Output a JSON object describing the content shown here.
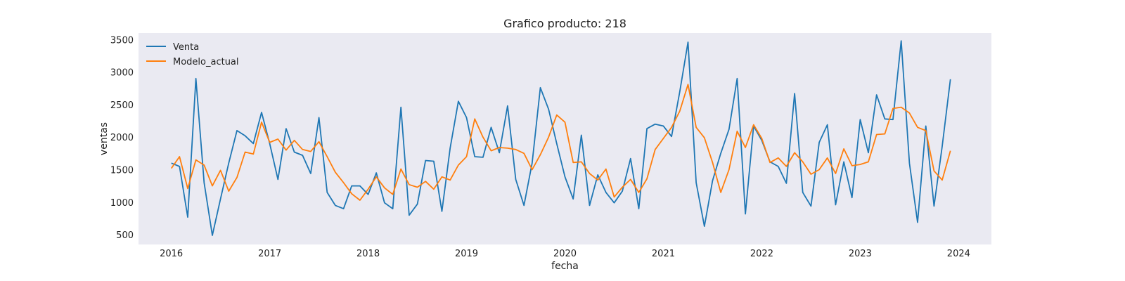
{
  "chart_data": {
    "type": "line",
    "title": "Grafico producto: 218",
    "xlabel": "fecha",
    "ylabel": "ventas",
    "xlim": [
      "2015-09-01",
      "2024-05-01"
    ],
    "ylim": [
      350,
      3600
    ],
    "x_ticks": [
      "2016",
      "2017",
      "2018",
      "2019",
      "2020",
      "2021",
      "2022",
      "2023",
      "2024"
    ],
    "y_ticks": [
      500,
      1000,
      1500,
      2000,
      2500,
      3000,
      3500
    ],
    "grid": false,
    "legend_position": "upper-left",
    "x": [
      "2016-01",
      "2016-02",
      "2016-03",
      "2016-04",
      "2016-05",
      "2016-06",
      "2016-07",
      "2016-08",
      "2016-09",
      "2016-10",
      "2016-11",
      "2016-12",
      "2017-01",
      "2017-02",
      "2017-03",
      "2017-04",
      "2017-05",
      "2017-06",
      "2017-07",
      "2017-08",
      "2017-09",
      "2017-10",
      "2017-11",
      "2017-12",
      "2018-01",
      "2018-02",
      "2018-03",
      "2018-04",
      "2018-05",
      "2018-06",
      "2018-07",
      "2018-08",
      "2018-09",
      "2018-10",
      "2018-11",
      "2018-12",
      "2019-01",
      "2019-02",
      "2019-03",
      "2019-04",
      "2019-05",
      "2019-06",
      "2019-07",
      "2019-08",
      "2019-09",
      "2019-10",
      "2019-11",
      "2019-12",
      "2020-01",
      "2020-02",
      "2020-03",
      "2020-04",
      "2020-05",
      "2020-06",
      "2020-07",
      "2020-08",
      "2020-09",
      "2020-10",
      "2020-11",
      "2020-12",
      "2021-01",
      "2021-02",
      "2021-03",
      "2021-04",
      "2021-05",
      "2021-06",
      "2021-07",
      "2021-08",
      "2021-09",
      "2021-10",
      "2021-11",
      "2021-12",
      "2022-01",
      "2022-02",
      "2022-03",
      "2022-04",
      "2022-05",
      "2022-06",
      "2022-07",
      "2022-08",
      "2022-09",
      "2022-10",
      "2022-11",
      "2022-12",
      "2023-01",
      "2023-02",
      "2023-03",
      "2023-04",
      "2023-05",
      "2023-06",
      "2023-07",
      "2023-08",
      "2023-09",
      "2023-10",
      "2023-11",
      "2023-12"
    ],
    "series": [
      {
        "name": "Venta",
        "color": "#1f77b4",
        "values": [
          1600,
          1550,
          770,
          2900,
          1300,
          490,
          1050,
          1600,
          2100,
          2020,
          1900,
          2380,
          1900,
          1350,
          2130,
          1770,
          1720,
          1440,
          2300,
          1150,
          950,
          900,
          1250,
          1250,
          1120,
          1450,
          990,
          900,
          2460,
          800,
          970,
          1640,
          1630,
          860,
          1830,
          2550,
          2300,
          1700,
          1690,
          2150,
          1760,
          2480,
          1350,
          950,
          1600,
          2760,
          2430,
          1900,
          1390,
          1050,
          2030,
          950,
          1420,
          1150,
          990,
          1170,
          1670,
          900,
          2130,
          2200,
          2170,
          2010,
          2700,
          3460,
          1300,
          630,
          1330,
          1750,
          2120,
          2900,
          820,
          2170,
          1950,
          1620,
          1550,
          1290,
          2670,
          1150,
          940,
          1920,
          2190,
          960,
          1620,
          1070,
          2270,
          1760,
          2650,
          2280,
          2270,
          3480,
          1600,
          690,
          2170,
          940,
          1860,
          2890
        ]
      },
      {
        "name": "Modelo_actual",
        "color": "#ff7f0e",
        "values": [
          1520,
          1700,
          1210,
          1650,
          1570,
          1250,
          1490,
          1170,
          1380,
          1770,
          1740,
          2230,
          1920,
          1970,
          1800,
          1950,
          1810,
          1780,
          1930,
          1700,
          1460,
          1300,
          1130,
          1030,
          1200,
          1390,
          1220,
          1120,
          1510,
          1270,
          1230,
          1320,
          1200,
          1390,
          1340,
          1570,
          1700,
          2280,
          2000,
          1790,
          1840,
          1830,
          1810,
          1750,
          1500,
          1730,
          2000,
          2340,
          2230,
          1610,
          1620,
          1440,
          1340,
          1510,
          1080,
          1230,
          1350,
          1150,
          1360,
          1810,
          1980,
          2150,
          2400,
          2810,
          2150,
          1990,
          1610,
          1150,
          1500,
          2090,
          1840,
          2190,
          1980,
          1610,
          1680,
          1550,
          1760,
          1620,
          1430,
          1500,
          1680,
          1440,
          1820,
          1560,
          1580,
          1620,
          2040,
          2050,
          2440,
          2460,
          2370,
          2150,
          2100,
          1480,
          1340,
          1790
        ]
      }
    ]
  }
}
